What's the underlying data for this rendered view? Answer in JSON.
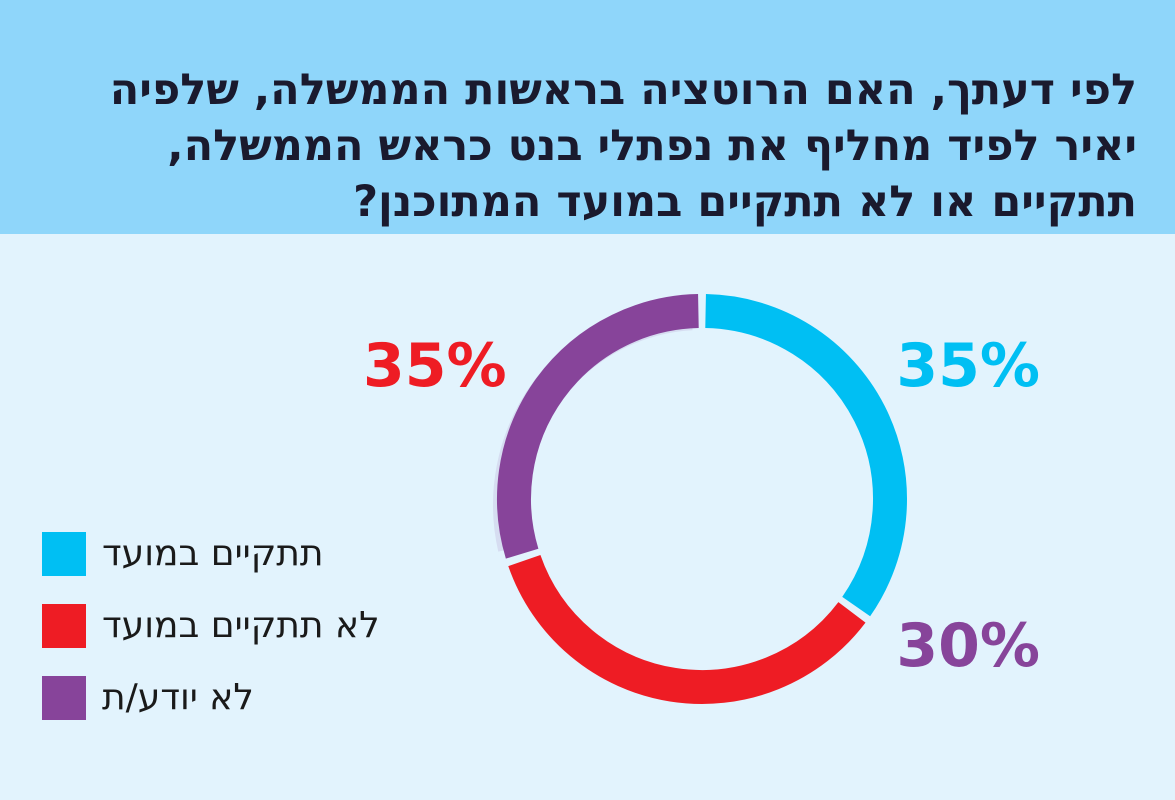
{
  "question": "לפי דעתך, האם הרוטציה בראשות הממשלה, שלפיה יאיר לפיד מחליף את נפתלי בנט כראש הממשלה, תתקיים או לא תתקיים במועד המתוכנן?",
  "colors": {
    "header_bg": "#8fd6fa",
    "page_bg": "#e2f3fd",
    "title": "#1a1a2e"
  },
  "chart_data": {
    "type": "pie",
    "title": "לפי דעתך, האם הרוטציה בראשות הממשלה, שלפיה יאיר לפיד מחליף את נפתלי בנט כראש הממשלה, תתקיים או לא תתקיים במועד המתוכנן?",
    "categories": [
      "תתקיים במועד",
      "לא תתקיים במועד",
      "לא יודע/ת"
    ],
    "values": [
      35,
      35,
      30
    ],
    "labels": [
      "35%",
      "35%",
      "30%"
    ],
    "colors": [
      "#00bff3",
      "#ee1c24",
      "#87449a"
    ],
    "legend_placement": "bottom-left",
    "style": "donut"
  }
}
